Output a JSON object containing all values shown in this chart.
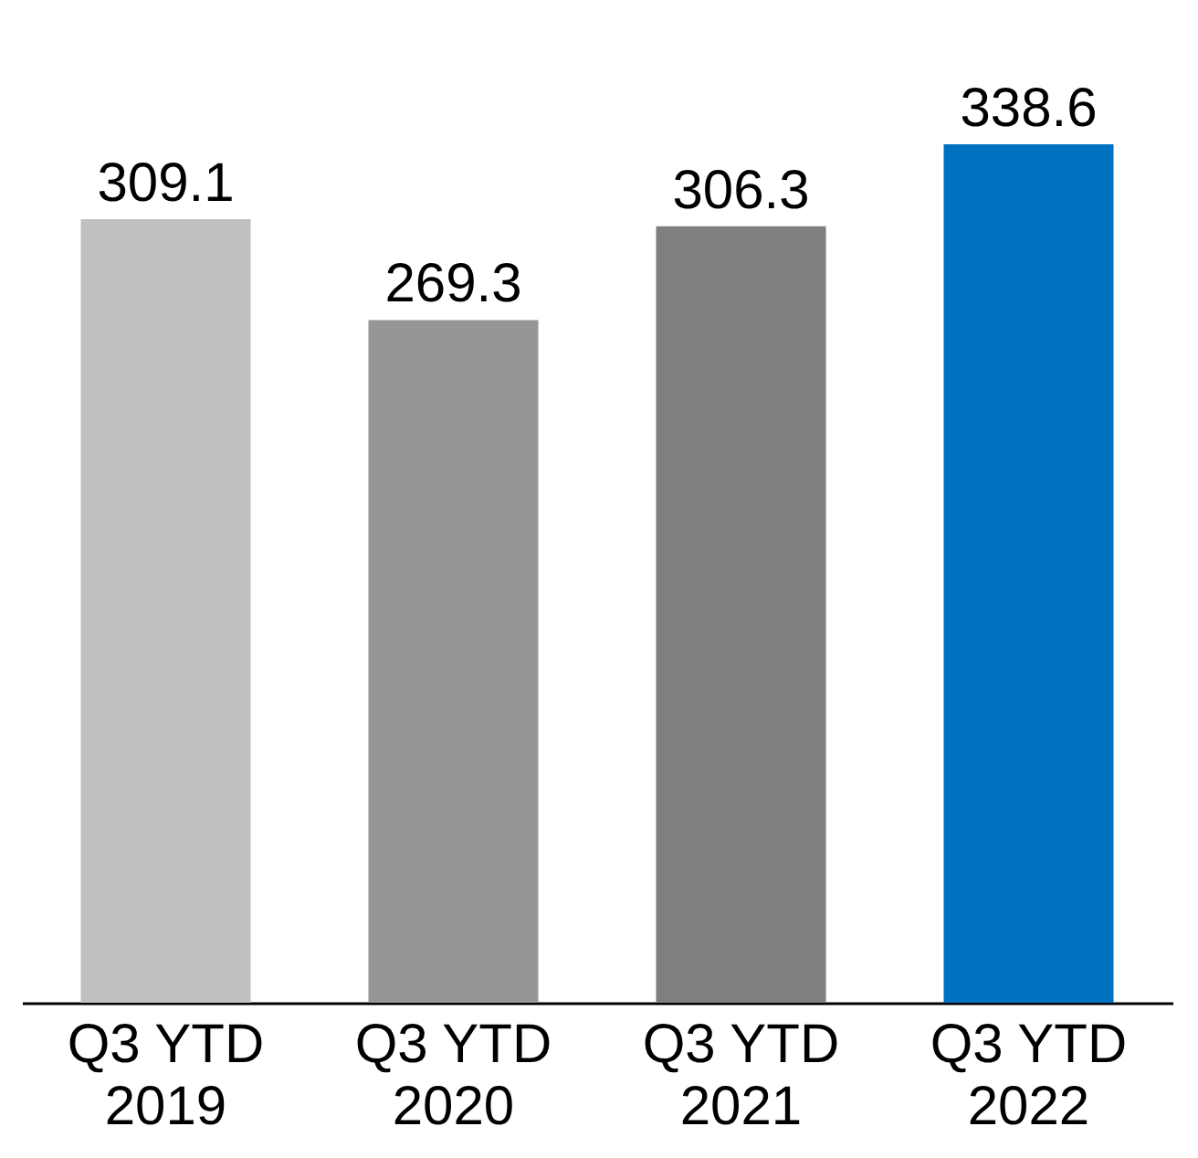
{
  "chart_data": {
    "type": "bar",
    "categories": [
      "Q3 YTD\n2019",
      "Q3 YTD\n2020",
      "Q3 YTD\n2021",
      "Q3 YTD\n2022"
    ],
    "values": [
      309.1,
      269.3,
      306.3,
      338.6
    ],
    "colors": [
      "#c0c0c0",
      "#969696",
      "#7f7f7f",
      "#0070c0"
    ],
    "data_labels": true,
    "tick_labels": "x",
    "grid": false
  }
}
